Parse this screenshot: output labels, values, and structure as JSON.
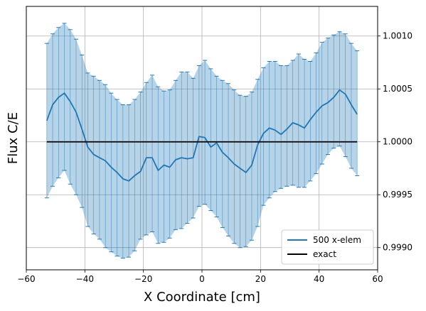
{
  "chart_data": {
    "type": "line",
    "title": "",
    "xlabel": "X Coordinate [cm]",
    "ylabel": "Flux C/E",
    "xlim": [
      -60,
      60
    ],
    "ylim": [
      0.99879,
      1.00128
    ],
    "x_ticks": [
      -60,
      -40,
      -20,
      0,
      20,
      40,
      60
    ],
    "x_tick_labels": [
      "−60",
      "−40",
      "−20",
      "0",
      "20",
      "40",
      "60"
    ],
    "y_ticks": [
      0.999,
      0.9995,
      1.0,
      1.0005,
      1.001
    ],
    "y_tick_labels": [
      "0.9990",
      "0.9995",
      "1.0000",
      "1.0005",
      "1.0010"
    ],
    "y_axis_side": "right",
    "grid": true,
    "legend_position": "bottom-right",
    "colors": {
      "series": "#1f77b4",
      "exact": "#000000",
      "band": "#1f77b4"
    },
    "series": [
      {
        "name": "500 x-elem",
        "type": "line_with_errorbars",
        "x": [
          -53,
          -51,
          -49,
          -47,
          -45,
          -43,
          -41,
          -39,
          -37,
          -35,
          -33,
          -31,
          -29,
          -27,
          -25,
          -23,
          -21,
          -19,
          -17,
          -15,
          -13,
          -11,
          -9,
          -7,
          -5,
          -3,
          -1,
          1,
          3,
          5,
          7,
          9,
          11,
          13,
          15,
          17,
          19,
          21,
          23,
          25,
          27,
          29,
          31,
          33,
          35,
          37,
          39,
          41,
          43,
          45,
          47,
          49,
          51,
          53
        ],
        "y": [
          1.0002,
          1.00035,
          1.00042,
          1.00046,
          1.00038,
          1.00028,
          1.00012,
          0.99995,
          0.99988,
          0.99985,
          0.99982,
          0.99976,
          0.99971,
          0.99965,
          0.99963,
          0.99968,
          0.99972,
          0.99985,
          0.99985,
          0.99973,
          0.99978,
          0.99976,
          0.99983,
          0.99985,
          0.99984,
          0.99985,
          1.00005,
          1.00004,
          0.99995,
          0.99999,
          0.9999,
          0.99985,
          0.99979,
          0.99975,
          0.99971,
          0.99978,
          0.99997,
          1.00008,
          1.00013,
          1.00011,
          1.00007,
          1.00012,
          1.00018,
          1.00016,
          1.00013,
          1.00021,
          1.00028,
          1.00034,
          1.00037,
          1.00042,
          1.00049,
          1.00045,
          1.00035,
          1.00026
        ],
        "err_upper": [
          1.00093,
          1.00102,
          1.00108,
          1.00112,
          1.00106,
          1.00097,
          1.00082,
          1.00065,
          1.00062,
          1.00058,
          1.00054,
          1.00046,
          1.0004,
          1.00035,
          1.00035,
          1.0004,
          1.00047,
          1.00056,
          1.00063,
          1.00052,
          1.00048,
          1.00049,
          1.00058,
          1.00066,
          1.00066,
          1.0006,
          1.00072,
          1.00077,
          1.00069,
          1.00062,
          1.00058,
          1.00055,
          1.00049,
          1.00044,
          1.00043,
          1.00047,
          1.00059,
          1.0007,
          1.00076,
          1.00076,
          1.00072,
          1.00072,
          1.00077,
          1.00083,
          1.00078,
          1.00076,
          1.00084,
          1.00094,
          1.00098,
          1.00101,
          1.00104,
          1.00102,
          1.00093,
          1.00086
        ],
        "err_lower": [
          0.99947,
          0.99958,
          0.99966,
          0.99973,
          0.9996,
          0.9995,
          0.99938,
          0.9992,
          0.99913,
          0.99908,
          0.999,
          0.99896,
          0.99892,
          0.9989,
          0.99891,
          0.99897,
          0.99908,
          0.99912,
          0.99915,
          0.99904,
          0.99905,
          0.99909,
          0.99917,
          0.99918,
          0.99923,
          0.99928,
          0.99939,
          0.99941,
          0.99935,
          0.99929,
          0.99919,
          0.99911,
          0.99904,
          0.999,
          0.99901,
          0.99907,
          0.9992,
          0.9994,
          0.99947,
          0.99953,
          0.99956,
          0.99958,
          0.99959,
          0.99957,
          0.99957,
          0.99963,
          0.9997,
          0.99979,
          0.99988,
          0.99994,
          0.99996,
          0.99986,
          0.99975,
          0.99968
        ]
      },
      {
        "name": "exact",
        "type": "line",
        "x": [
          -53,
          53
        ],
        "y": [
          1.0,
          1.0
        ]
      }
    ]
  }
}
